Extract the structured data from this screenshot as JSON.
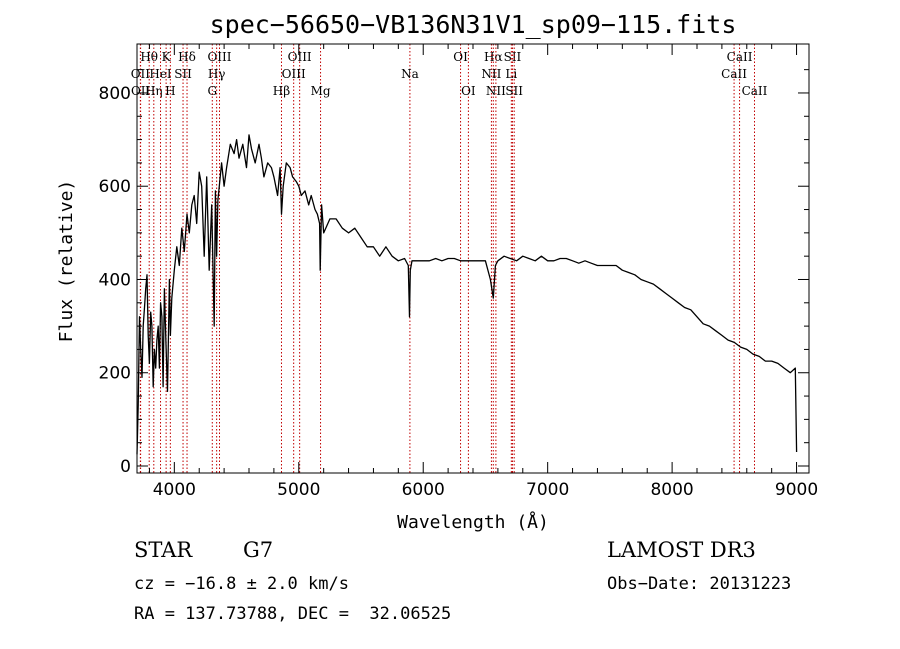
{
  "chart_data": {
    "type": "line",
    "title": "spec−56650−VB136N31V1_sp09−115.fits",
    "xlabel": "Wavelength (Å)",
    "ylabel": "Flux (relative)",
    "xlim": [
      3700,
      9100
    ],
    "ylim": [
      -15,
      905
    ],
    "x_ticks": [
      4000,
      5000,
      6000,
      7000,
      8000,
      9000
    ],
    "y_ticks": [
      0,
      200,
      400,
      600,
      800
    ],
    "series": [
      {
        "name": "flux",
        "x": [
          3700,
          3710,
          3720,
          3730,
          3740,
          3750,
          3760,
          3770,
          3780,
          3790,
          3800,
          3810,
          3820,
          3830,
          3840,
          3850,
          3860,
          3870,
          3880,
          3890,
          3900,
          3910,
          3920,
          3933,
          3945,
          3960,
          3968,
          3980,
          4000,
          4020,
          4040,
          4060,
          4080,
          4102,
          4120,
          4140,
          4160,
          4180,
          4200,
          4220,
          4240,
          4260,
          4280,
          4300,
          4320,
          4330,
          4340,
          4350,
          4380,
          4400,
          4420,
          4450,
          4480,
          4500,
          4520,
          4550,
          4580,
          4600,
          4620,
          4650,
          4680,
          4700,
          4720,
          4750,
          4780,
          4800,
          4830,
          4850,
          4861,
          4875,
          4900,
          4930,
          4950,
          4980,
          5000,
          5020,
          5050,
          5080,
          5100,
          5130,
          5150,
          5167,
          5172,
          5183,
          5200,
          5250,
          5300,
          5350,
          5400,
          5450,
          5500,
          5550,
          5600,
          5650,
          5700,
          5750,
          5800,
          5850,
          5880,
          5890,
          5896,
          5910,
          5950,
          6000,
          6050,
          6100,
          6150,
          6200,
          6250,
          6300,
          6350,
          6400,
          6450,
          6500,
          6540,
          6563,
          6580,
          6600,
          6650,
          6700,
          6750,
          6800,
          6850,
          6900,
          6950,
          7000,
          7050,
          7100,
          7150,
          7200,
          7250,
          7300,
          7350,
          7400,
          7450,
          7500,
          7550,
          7600,
          7650,
          7700,
          7750,
          7800,
          7850,
          7900,
          7950,
          8000,
          8050,
          8100,
          8150,
          8200,
          8250,
          8300,
          8350,
          8400,
          8450,
          8500,
          8550,
          8600,
          8650,
          8700,
          8750,
          8800,
          8850,
          8900,
          8950,
          8990,
          9000
        ],
        "values": [
          25,
          130,
          320,
          250,
          190,
          300,
          340,
          380,
          410,
          280,
          220,
          330,
          300,
          170,
          250,
          210,
          270,
          300,
          210,
          350,
          320,
          170,
          380,
          260,
          160,
          400,
          280,
          360,
          420,
          470,
          430,
          510,
          460,
          540,
          500,
          560,
          580,
          520,
          630,
          600,
          450,
          620,
          420,
          560,
          300,
          590,
          450,
          570,
          650,
          600,
          640,
          690,
          670,
          700,
          660,
          690,
          640,
          710,
          680,
          650,
          690,
          660,
          620,
          650,
          640,
          620,
          580,
          640,
          540,
          600,
          650,
          640,
          620,
          610,
          600,
          580,
          590,
          560,
          580,
          550,
          540,
          520,
          420,
          560,
          500,
          530,
          530,
          510,
          500,
          510,
          490,
          470,
          470,
          450,
          470,
          450,
          440,
          445,
          430,
          320,
          420,
          440,
          440,
          440,
          440,
          445,
          440,
          445,
          445,
          440,
          440,
          440,
          440,
          440,
          400,
          360,
          430,
          440,
          450,
          445,
          440,
          450,
          445,
          440,
          450,
          440,
          440,
          445,
          445,
          440,
          435,
          440,
          435,
          430,
          430,
          430,
          430,
          420,
          415,
          410,
          400,
          395,
          390,
          380,
          370,
          360,
          350,
          340,
          335,
          320,
          305,
          300,
          290,
          280,
          270,
          265,
          255,
          250,
          240,
          235,
          225,
          225,
          220,
          210,
          200,
          210,
          30
        ],
        "color": "#000000"
      }
    ],
    "spectral_lines": [
      {
        "name": "Hθ",
        "x": 3798,
        "row": 0
      },
      {
        "name": "OII",
        "x": 3727,
        "row": 1
      },
      {
        "name": "OII",
        "x": 3729,
        "row": 2
      },
      {
        "name": "Hη",
        "x": 3835,
        "row": 2
      },
      {
        "name": "HeI",
        "x": 3889,
        "row": 1
      },
      {
        "name": "K",
        "x": 3934,
        "row": 0
      },
      {
        "name": "H",
        "x": 3968,
        "row": 2
      },
      {
        "name": "Hδ",
        "x": 4102,
        "row": 0
      },
      {
        "name": "SII",
        "x": 4070,
        "row": 1
      },
      {
        "name": "OIII",
        "x": 4363,
        "row": 0
      },
      {
        "name": "Hγ",
        "x": 4340,
        "row": 1
      },
      {
        "name": "G",
        "x": 4305,
        "row": 2
      },
      {
        "name": "Hβ",
        "x": 4861,
        "row": 2
      },
      {
        "name": "OIII",
        "x": 5007,
        "row": 0
      },
      {
        "name": "OIII",
        "x": 4959,
        "row": 1
      },
      {
        "name": "Mg",
        "x": 5175,
        "row": 2
      },
      {
        "name": "Na",
        "x": 5893,
        "row": 1
      },
      {
        "name": "OI",
        "x": 6300,
        "row": 0
      },
      {
        "name": "OI",
        "x": 6363,
        "row": 2
      },
      {
        "name": "Hα",
        "x": 6563,
        "row": 0
      },
      {
        "name": "SII",
        "x": 6717,
        "row": 0
      },
      {
        "name": "NII",
        "x": 6548,
        "row": 1
      },
      {
        "name": "Li",
        "x": 6708,
        "row": 1
      },
      {
        "name": "NII",
        "x": 6584,
        "row": 2
      },
      {
        "name": "SII",
        "x": 6731,
        "row": 2
      },
      {
        "name": "CaII",
        "x": 8542,
        "row": 0
      },
      {
        "name": "CaII",
        "x": 8498,
        "row": 1
      },
      {
        "name": "CaII",
        "x": 8662,
        "row": 2
      }
    ],
    "line_color": "#c00000"
  },
  "footer": {
    "object_class": "STAR",
    "subclass": "G7",
    "redshift": "cz = −16.8 ± 2.0 km/s",
    "coordinates": "RA = 137.73788, DEC =  32.06525",
    "survey": "LAMOST DR3",
    "obs_date": "Obs−Date: 20131223"
  }
}
